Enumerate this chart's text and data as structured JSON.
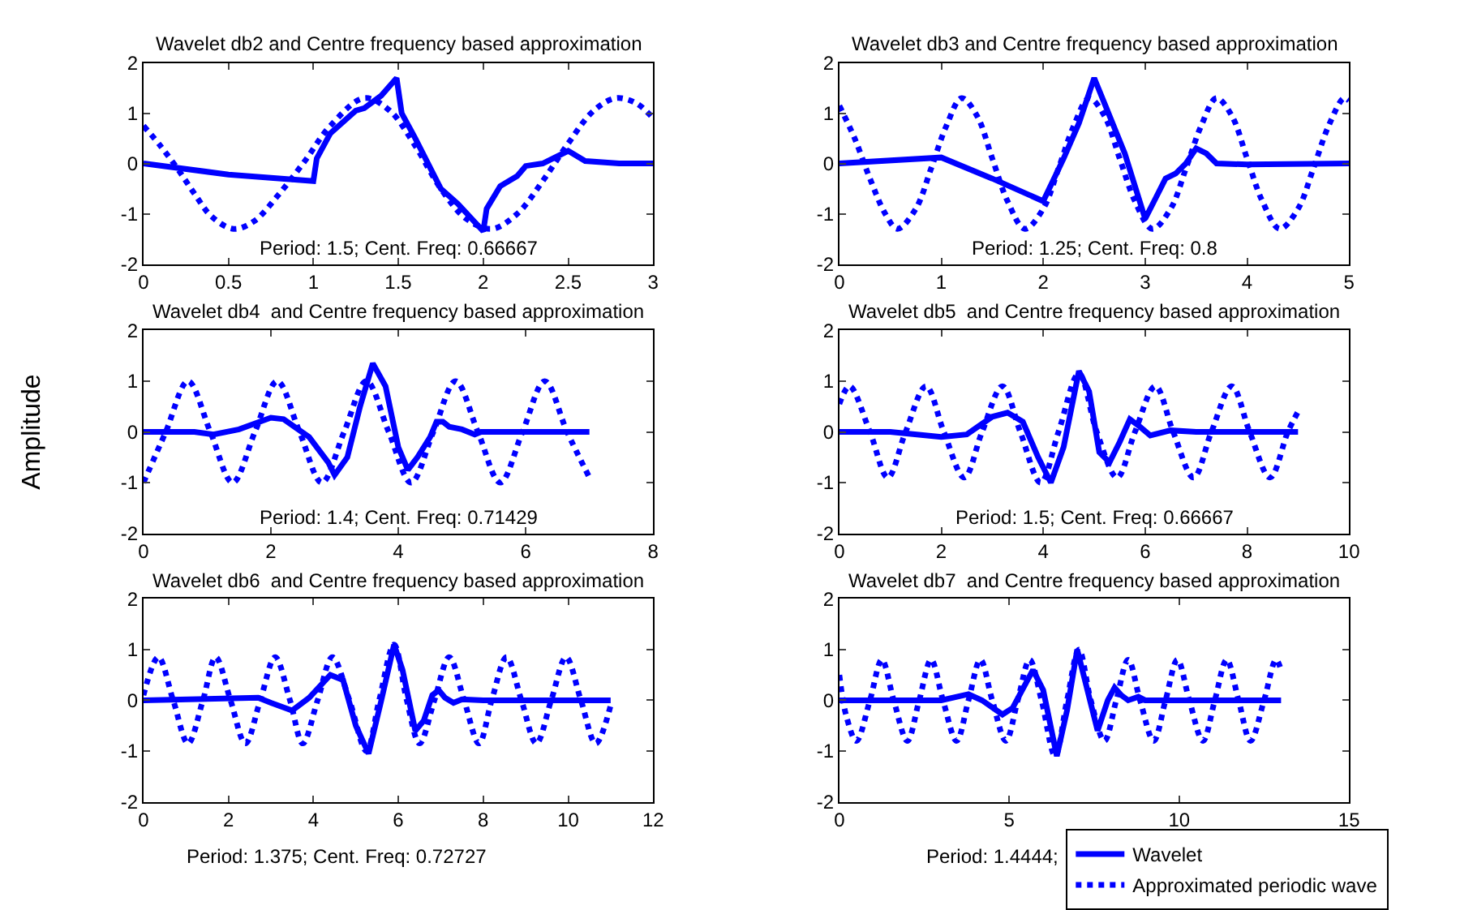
{
  "chart_data": [
    {
      "type": "line",
      "title": "Wavelet db2 and Centre frequency based approximation",
      "annotations": [
        "Period: 1.5; Cent. Freq: 0.66667"
      ],
      "xlim": [
        0,
        3
      ],
      "xticks": [
        0,
        0.5,
        1,
        1.5,
        2,
        2.5,
        3
      ],
      "ylim": [
        -2,
        2
      ],
      "yticks": [
        -2,
        -1,
        0,
        1,
        2
      ],
      "marker": "none",
      "series": [
        {
          "color": "#0000ff",
          "line_style": "solid",
          "x": [
            0,
            0.5,
            1.0,
            1.02,
            1.1,
            1.25,
            1.3,
            1.4,
            1.49,
            1.52,
            1.6,
            1.75,
            1.85,
            2.0,
            2.02,
            2.1,
            2.2,
            2.25,
            2.35,
            2.5,
            2.6,
            2.8,
            3.0
          ],
          "values": [
            0,
            -0.22,
            -0.35,
            0.1,
            0.6,
            1.05,
            1.1,
            1.35,
            1.7,
            1.0,
            0.5,
            -0.5,
            -0.8,
            -1.35,
            -0.9,
            -0.45,
            -0.25,
            -0.05,
            0.0,
            0.25,
            0.05,
            0.0,
            0.0
          ]
        },
        {
          "color": "#0000ff",
          "line_style": "dotted",
          "x": [
            0,
            0.1,
            0.2,
            0.3,
            0.4,
            0.53,
            0.65,
            0.8,
            0.95,
            1.1,
            1.3,
            1.45,
            1.6,
            1.75,
            1.9,
            2.05,
            2.2,
            2.35,
            2.5,
            2.65,
            2.78,
            2.9,
            3.0
          ],
          "values": [
            0.75,
            0.35,
            -0.1,
            -0.6,
            -1.05,
            -1.3,
            -1.15,
            -0.6,
            0.05,
            0.75,
            1.3,
            1.05,
            0.35,
            -0.5,
            -1.1,
            -1.3,
            -1.0,
            -0.35,
            0.4,
            1.05,
            1.3,
            1.2,
            0.9
          ]
        }
      ]
    },
    {
      "type": "line",
      "title": "Wavelet db3 and Centre frequency based approximation",
      "annotations": [
        "Period: 1.25; Cent. Freq: 0.8"
      ],
      "xlim": [
        0,
        5
      ],
      "xticks": [
        0,
        1,
        2,
        3,
        4,
        5
      ],
      "ylim": [
        -2,
        2
      ],
      "yticks": [
        -2,
        -1,
        0,
        1,
        2
      ],
      "marker": "none",
      "series": [
        {
          "color": "#0000ff",
          "line_style": "solid",
          "x": [
            0,
            1.0,
            1.5,
            2.0,
            2.2,
            2.35,
            2.5,
            2.6,
            2.8,
            3.0,
            3.1,
            3.2,
            3.3,
            3.4,
            3.5,
            3.6,
            3.7,
            4.0,
            5.0
          ],
          "values": [
            0,
            0.12,
            -0.3,
            -0.75,
            0.1,
            0.8,
            1.7,
            1.2,
            0.2,
            -1.1,
            -0.7,
            -0.3,
            -0.2,
            0.0,
            0.3,
            0.2,
            0.0,
            -0.02,
            0.0
          ]
        },
        {
          "color": "#0000ff",
          "line_style": "dotted",
          "x": [
            0,
            0.15,
            0.3,
            0.45,
            0.57,
            0.75,
            0.9,
            1.05,
            1.2,
            1.35,
            1.5,
            1.65,
            1.82,
            2.0,
            2.15,
            2.3,
            2.45,
            2.6,
            2.75,
            2.9,
            3.07,
            3.25,
            3.4,
            3.55,
            3.7,
            3.85,
            4.0,
            4.15,
            4.32,
            4.5,
            4.65,
            4.8,
            4.95,
            5.0
          ],
          "values": [
            1.15,
            0.5,
            -0.3,
            -1.0,
            -1.3,
            -0.9,
            -0.1,
            0.75,
            1.3,
            0.95,
            0.1,
            -0.75,
            -1.3,
            -0.9,
            -0.1,
            0.75,
            1.3,
            0.95,
            0.1,
            -0.75,
            -1.3,
            -0.9,
            -0.1,
            0.75,
            1.3,
            0.95,
            0.1,
            -0.75,
            -1.3,
            -0.9,
            -0.1,
            0.75,
            1.3,
            1.25
          ]
        }
      ]
    },
    {
      "type": "line",
      "title": "Wavelet db4  and Centre frequency based approximation",
      "ylabel": "Amplitude",
      "annotations": [
        "Period: 1.4; Cent. Freq: 0.71429"
      ],
      "xlim": [
        0,
        8
      ],
      "xticks": [
        0,
        2,
        4,
        6,
        8
      ],
      "ylim": [
        -2,
        2
      ],
      "yticks": [
        -2,
        -1,
        0,
        1,
        2
      ],
      "marker": "none",
      "series": [
        {
          "color": "#0000ff",
          "line_style": "solid",
          "x": [
            0,
            0.8,
            1.1,
            1.5,
            2.0,
            2.2,
            2.6,
            2.9,
            3.0,
            3.2,
            3.4,
            3.6,
            3.8,
            4.0,
            4.15,
            4.3,
            4.5,
            4.6,
            4.7,
            4.8,
            5.0,
            5.2,
            5.3,
            7.0
          ],
          "values": [
            0,
            0,
            -0.05,
            0.05,
            0.28,
            0.25,
            -0.1,
            -0.6,
            -0.85,
            -0.5,
            0.5,
            1.35,
            0.9,
            -0.3,
            -0.75,
            -0.5,
            -0.1,
            0.2,
            0.2,
            0.1,
            0.05,
            -0.05,
            0,
            0
          ]
        },
        {
          "color": "#0000ff",
          "line_style": "dotted",
          "x": [
            0,
            0.35,
            0.7,
            1.05,
            1.4,
            1.75,
            2.1,
            2.45,
            2.8,
            3.15,
            3.5,
            3.85,
            4.2,
            4.55,
            4.9,
            5.25,
            5.6,
            5.95,
            6.3,
            6.65,
            7.0
          ],
          "values": [
            -1,
            0,
            1,
            0,
            -1,
            0,
            1,
            0,
            -1,
            0,
            1,
            0,
            -1,
            0,
            1,
            0,
            -1,
            0,
            1,
            0,
            -0.9
          ]
        }
      ]
    },
    {
      "type": "line",
      "title": "Wavelet db5  and Centre frequency based approximation",
      "annotations": [
        "Period: 1.5; Cent. Freq: 0.66667"
      ],
      "xlim": [
        0,
        10
      ],
      "xticks": [
        0,
        2,
        4,
        6,
        8,
        10
      ],
      "ylim": [
        -2,
        2
      ],
      "yticks": [
        -2,
        -1,
        0,
        1,
        2
      ],
      "marker": "none",
      "series": [
        {
          "color": "#0000ff",
          "line_style": "solid",
          "x": [
            0,
            1,
            2,
            2.5,
            3.0,
            3.3,
            3.6,
            3.9,
            4.15,
            4.4,
            4.7,
            4.9,
            5.1,
            5.3,
            5.5,
            5.7,
            5.9,
            6.1,
            6.5,
            7,
            9
          ],
          "values": [
            0,
            0,
            -0.1,
            -0.05,
            0.3,
            0.38,
            0.2,
            -0.5,
            -1.0,
            -0.3,
            1.2,
            0.8,
            -0.4,
            -0.6,
            -0.2,
            0.25,
            0.1,
            -0.07,
            0.03,
            0,
            0
          ]
        },
        {
          "color": "#0000ff",
          "line_style": "dotted",
          "x": [
            0,
            0.2,
            0.6,
            0.95,
            1.3,
            1.7,
            2.05,
            2.45,
            2.8,
            3.2,
            3.55,
            3.95,
            4.3,
            4.7,
            5.05,
            5.45,
            5.8,
            6.2,
            6.55,
            6.95,
            7.3,
            7.7,
            8.05,
            8.45,
            8.8,
            9.0
          ],
          "values": [
            0.55,
            0.9,
            0,
            -0.9,
            0,
            0.9,
            0,
            -0.9,
            0,
            0.9,
            0,
            -1.0,
            0,
            1.15,
            0,
            -0.9,
            0,
            0.9,
            0,
            -0.9,
            0,
            0.9,
            0,
            -0.9,
            0,
            0.4
          ]
        }
      ]
    },
    {
      "type": "line",
      "title": "Wavelet db6  and Centre frequency based approximation",
      "annotations": [
        "Period: 1.375; Cent. Freq: 0.72727"
      ],
      "xlim": [
        0,
        12
      ],
      "xticks": [
        0,
        2,
        4,
        6,
        8,
        10,
        12
      ],
      "ylim": [
        -2,
        2
      ],
      "yticks": [
        -2,
        -1,
        0,
        1,
        2
      ],
      "marker": "none",
      "series": [
        {
          "color": "#0000ff",
          "line_style": "solid",
          "x": [
            0,
            2.7,
            3.0,
            3.5,
            3.9,
            4.4,
            4.7,
            5.0,
            5.3,
            5.6,
            5.9,
            6.1,
            6.4,
            6.6,
            6.8,
            6.95,
            7.1,
            7.3,
            7.5,
            8,
            11
          ],
          "values": [
            0,
            0.05,
            -0.05,
            -0.2,
            0.05,
            0.5,
            0.4,
            -0.5,
            -1.05,
            0,
            1.1,
            0.6,
            -0.6,
            -0.4,
            0.1,
            0.2,
            0.05,
            -0.05,
            0.02,
            0,
            0
          ]
        },
        {
          "color": "#0000ff",
          "line_style": "dotted",
          "x": [
            0,
            0.35,
            0.7,
            1.05,
            1.4,
            1.7,
            2.05,
            2.4,
            2.75,
            3.1,
            3.45,
            3.75,
            4.1,
            4.45,
            4.85,
            5.25,
            5.55,
            5.9,
            6.2,
            6.5,
            6.85,
            7.2,
            7.55,
            7.9,
            8.2,
            8.55,
            8.9,
            9.25,
            9.6,
            9.95,
            10.3,
            10.65,
            11.0
          ],
          "values": [
            0.1,
            0.85,
            0,
            -0.85,
            0,
            0.85,
            0,
            -0.85,
            0,
            0.85,
            0,
            -0.85,
            0,
            0.85,
            0,
            -1.0,
            0,
            1.1,
            0,
            -0.85,
            0,
            0.85,
            0,
            -0.85,
            0,
            0.85,
            0,
            -0.85,
            0,
            0.85,
            0,
            -0.85,
            -0.1
          ]
        }
      ]
    },
    {
      "type": "line",
      "title": "Wavelet db7  and Centre frequency based approximation",
      "annotations": [
        "Period: 1.4444;"
      ],
      "xlim": [
        0,
        15
      ],
      "xticks": [
        0,
        5,
        10,
        15
      ],
      "ylim": [
        -2,
        2
      ],
      "yticks": [
        -2,
        -1,
        0,
        1,
        2
      ],
      "marker": "none",
      "legend": "bottom right",
      "series": [
        {
          "name": "Wavelet",
          "color": "#0000ff",
          "line_style": "solid",
          "x": [
            0,
            3,
            3.8,
            4.2,
            4.8,
            5.1,
            5.7,
            6.0,
            6.4,
            6.7,
            7.0,
            7.3,
            7.6,
            7.9,
            8.1,
            8.3,
            8.5,
            8.8,
            9.0,
            13
          ],
          "values": [
            0,
            0,
            0.12,
            0,
            -0.28,
            -0.15,
            0.6,
            0.2,
            -1.1,
            -0.2,
            1.0,
            0.2,
            -0.6,
            0,
            0.25,
            0.1,
            0.0,
            0.07,
            0,
            0
          ]
        },
        {
          "name": "Approximated periodic wave",
          "color": "#0000ff",
          "line_style": "dotted",
          "x": [
            0,
            0.2,
            0.5,
            0.9,
            1.25,
            1.6,
            2.0,
            2.35,
            2.7,
            3.05,
            3.45,
            3.8,
            4.15,
            4.5,
            4.9,
            5.25,
            5.6,
            5.95,
            6.35,
            6.7,
            7.05,
            7.4,
            7.8,
            8.15,
            8.5,
            8.85,
            9.25,
            9.6,
            9.95,
            10.3,
            10.7,
            11.05,
            11.4,
            11.75,
            12.1,
            12.5,
            12.85,
            13.0
          ],
          "values": [
            0.5,
            -0.3,
            -0.8,
            0,
            0.8,
            0,
            -0.8,
            0,
            0.8,
            0,
            -0.8,
            0,
            0.8,
            0,
            -0.8,
            0,
            0.8,
            0,
            -1.1,
            0,
            1.0,
            0,
            -0.8,
            0,
            0.8,
            0,
            -0.8,
            0,
            0.8,
            0,
            -0.8,
            0,
            0.8,
            0,
            -0.8,
            0,
            0.8,
            0.6
          ]
        }
      ]
    }
  ]
}
